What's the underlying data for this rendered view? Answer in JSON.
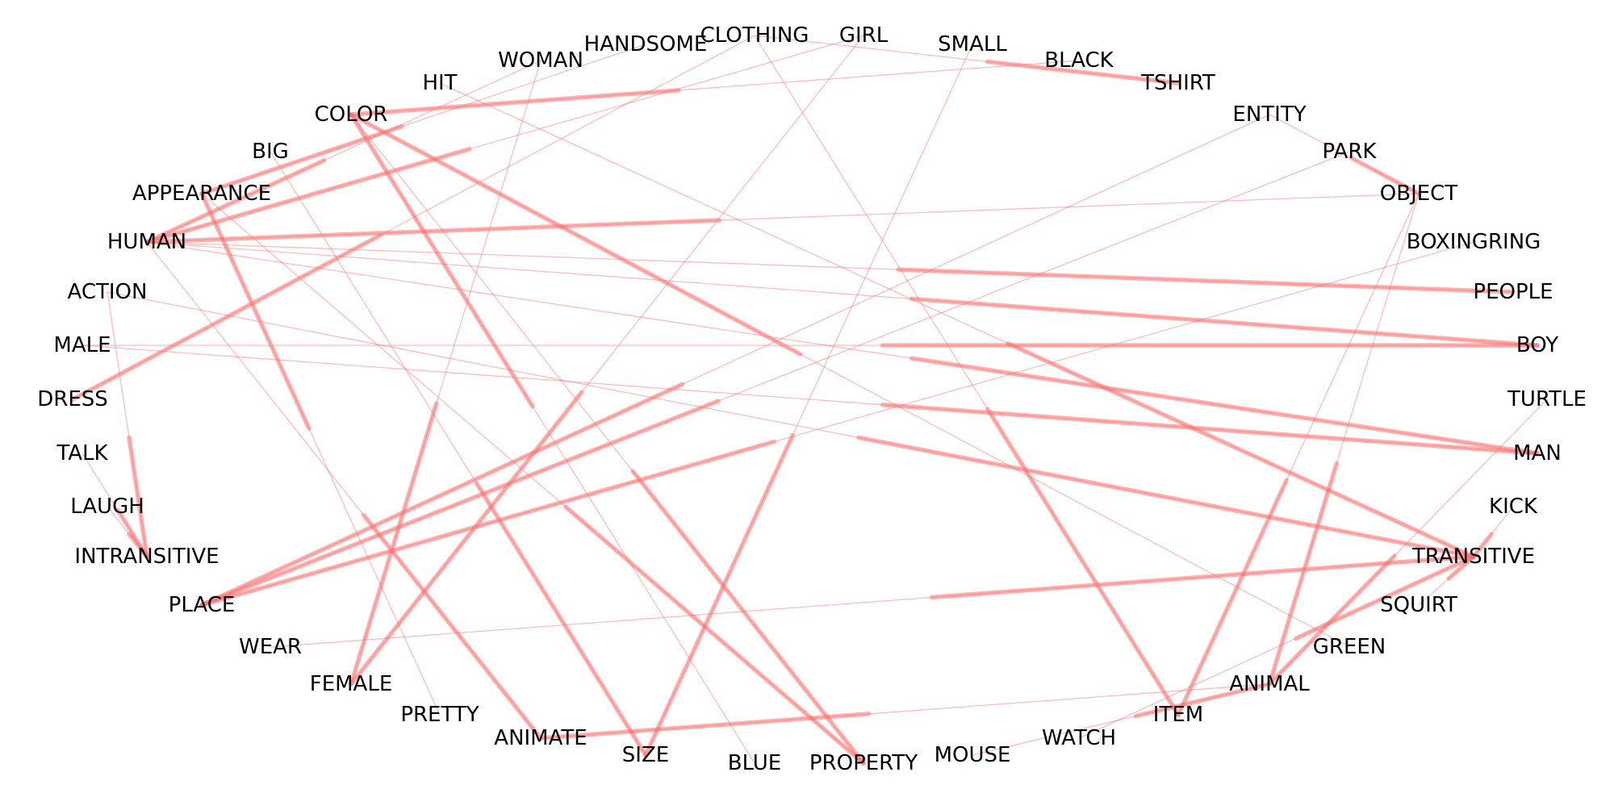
{
  "colors": {
    "edge": "#ff6b6b",
    "label": "#000000",
    "background": "#ffffff"
  },
  "nodes": [
    {
      "id": "CLOTHING",
      "label": "CLOTHING"
    },
    {
      "id": "GIRL",
      "label": "GIRL"
    },
    {
      "id": "SMALL",
      "label": "SMALL"
    },
    {
      "id": "HANDSOME",
      "label": "HANDSOME"
    },
    {
      "id": "WOMAN",
      "label": "WOMAN"
    },
    {
      "id": "BLACK",
      "label": "BLACK"
    },
    {
      "id": "HIT",
      "label": "HIT"
    },
    {
      "id": "TSHIRT",
      "label": "TSHIRT"
    },
    {
      "id": "COLOR",
      "label": "COLOR"
    },
    {
      "id": "ENTITY",
      "label": "ENTITY"
    },
    {
      "id": "BIG",
      "label": "BIG"
    },
    {
      "id": "PARK",
      "label": "PARK"
    },
    {
      "id": "APPEARANCE",
      "label": "APPEARANCE"
    },
    {
      "id": "OBJECT",
      "label": "OBJECT"
    },
    {
      "id": "HUMAN",
      "label": "HUMAN"
    },
    {
      "id": "BOXINGRING",
      "label": "BOXINGRING"
    },
    {
      "id": "ACTION",
      "label": "ACTION"
    },
    {
      "id": "PEOPLE",
      "label": "PEOPLE"
    },
    {
      "id": "MALE",
      "label": "MALE"
    },
    {
      "id": "BOY",
      "label": "BOY"
    },
    {
      "id": "DRESS",
      "label": "DRESS"
    },
    {
      "id": "TURTLE",
      "label": "TURTLE"
    },
    {
      "id": "TALK",
      "label": "TALK"
    },
    {
      "id": "MAN",
      "label": "MAN"
    },
    {
      "id": "LAUGH",
      "label": "LAUGH"
    },
    {
      "id": "KICK",
      "label": "KICK"
    },
    {
      "id": "INTRANSITIVE",
      "label": "INTRANSITIVE"
    },
    {
      "id": "TRANSITIVE",
      "label": "TRANSITIVE"
    },
    {
      "id": "PLACE",
      "label": "PLACE"
    },
    {
      "id": "SQUIRT",
      "label": "SQUIRT"
    },
    {
      "id": "WEAR",
      "label": "WEAR"
    },
    {
      "id": "GREEN",
      "label": "GREEN"
    },
    {
      "id": "FEMALE",
      "label": "FEMALE"
    },
    {
      "id": "ANIMAL",
      "label": "ANIMAL"
    },
    {
      "id": "PRETTY",
      "label": "PRETTY"
    },
    {
      "id": "ITEM",
      "label": "ITEM"
    },
    {
      "id": "ANIMATE",
      "label": "ANIMATE"
    },
    {
      "id": "WATCH",
      "label": "WATCH"
    },
    {
      "id": "SIZE",
      "label": "SIZE"
    },
    {
      "id": "MOUSE",
      "label": "MOUSE"
    },
    {
      "id": "BLUE",
      "label": "BLUE"
    },
    {
      "id": "PROPERTY",
      "label": "PROPERTY"
    }
  ],
  "edges": [
    {
      "source": "CLOTHING",
      "target": "ITEM"
    },
    {
      "source": "CLOTHING",
      "target": "TSHIRT"
    },
    {
      "source": "CLOTHING",
      "target": "DRESS"
    },
    {
      "source": "GIRL",
      "target": "HUMAN"
    },
    {
      "source": "GIRL",
      "target": "FEMALE"
    },
    {
      "source": "SMALL",
      "target": "SIZE"
    },
    {
      "source": "HANDSOME",
      "target": "APPEARANCE"
    },
    {
      "source": "WOMAN",
      "target": "HUMAN"
    },
    {
      "source": "WOMAN",
      "target": "FEMALE"
    },
    {
      "source": "BLACK",
      "target": "COLOR"
    },
    {
      "source": "HIT",
      "target": "TRANSITIVE"
    },
    {
      "source": "COLOR",
      "target": "PROPERTY"
    },
    {
      "source": "ENTITY",
      "target": "OBJECT"
    },
    {
      "source": "ENTITY",
      "target": "PLACE"
    },
    {
      "source": "BIG",
      "target": "SIZE"
    },
    {
      "source": "PARK",
      "target": "PLACE"
    },
    {
      "source": "APPEARANCE",
      "target": "PROPERTY"
    },
    {
      "source": "OBJECT",
      "target": "HUMAN"
    },
    {
      "source": "OBJECT",
      "target": "ITEM"
    },
    {
      "source": "OBJECT",
      "target": "ANIMAL"
    },
    {
      "source": "HUMAN",
      "target": "ANIMATE"
    },
    {
      "source": "HUMAN",
      "target": "PEOPLE"
    },
    {
      "source": "HUMAN",
      "target": "BOY"
    },
    {
      "source": "HUMAN",
      "target": "MAN"
    },
    {
      "source": "BOXINGRING",
      "target": "PLACE"
    },
    {
      "source": "ACTION",
      "target": "INTRANSITIVE"
    },
    {
      "source": "ACTION",
      "target": "TRANSITIVE"
    },
    {
      "source": "MALE",
      "target": "BOY"
    },
    {
      "source": "MALE",
      "target": "MAN"
    },
    {
      "source": "TURTLE",
      "target": "ANIMAL"
    },
    {
      "source": "TALK",
      "target": "INTRANSITIVE"
    },
    {
      "source": "LAUGH",
      "target": "INTRANSITIVE"
    },
    {
      "source": "KICK",
      "target": "TRANSITIVE"
    },
    {
      "source": "SQUIRT",
      "target": "TRANSITIVE"
    },
    {
      "source": "WEAR",
      "target": "TRANSITIVE"
    },
    {
      "source": "GREEN",
      "target": "COLOR"
    },
    {
      "source": "ANIMAL",
      "target": "ANIMATE"
    },
    {
      "source": "WATCH",
      "target": "TRANSITIVE"
    },
    {
      "source": "MOUSE",
      "target": "ANIMAL"
    },
    {
      "source": "BLUE",
      "target": "COLOR"
    },
    {
      "source": "PRETTY",
      "target": "APPEARANCE"
    }
  ]
}
